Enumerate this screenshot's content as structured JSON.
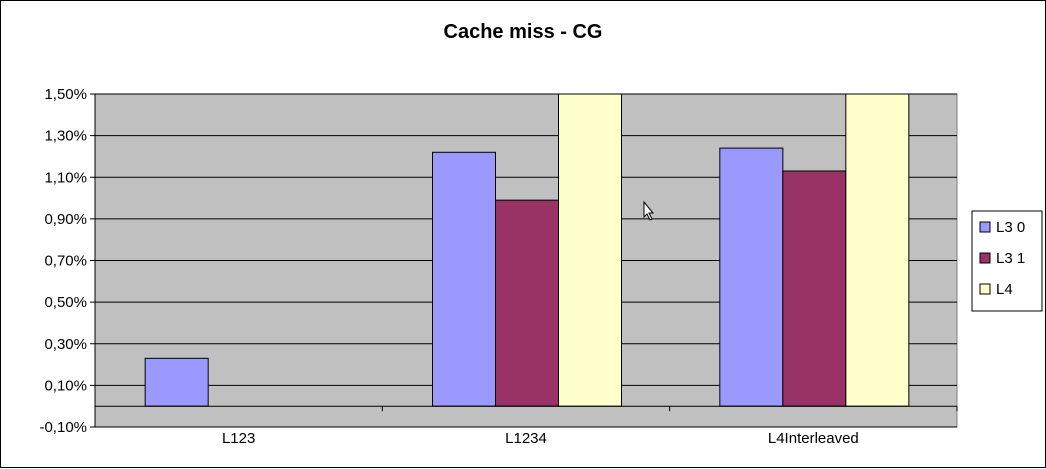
{
  "chart_data": {
    "type": "bar",
    "title": "Cache miss - CG",
    "categories": [
      "L123",
      "L1234",
      "L4Interleaved"
    ],
    "series": [
      {
        "name": "L3 0",
        "values": [
          0.23,
          1.22,
          1.24
        ],
        "color": "#9999ff"
      },
      {
        "name": "L3 1",
        "values": [
          0.0,
          0.99,
          1.13
        ],
        "color": "#993366"
      },
      {
        "name": "L4",
        "values": [
          0.0,
          1.6,
          1.6
        ],
        "color": "#ffffcc"
      }
    ],
    "ylim": [
      -0.1,
      1.5
    ],
    "yticks": [
      -0.1,
      0.1,
      0.3,
      0.5,
      0.7,
      0.9,
      1.1,
      1.3,
      1.5
    ],
    "ytick_labels": [
      "-0,10%",
      "0,10%",
      "0,30%",
      "0,50%",
      "0,70%",
      "0,90%",
      "1,10%",
      "1,30%",
      "1,50%"
    ],
    "unit": "%",
    "grid": true,
    "legend_position": "right",
    "plot_background": "#c0c0c0"
  }
}
